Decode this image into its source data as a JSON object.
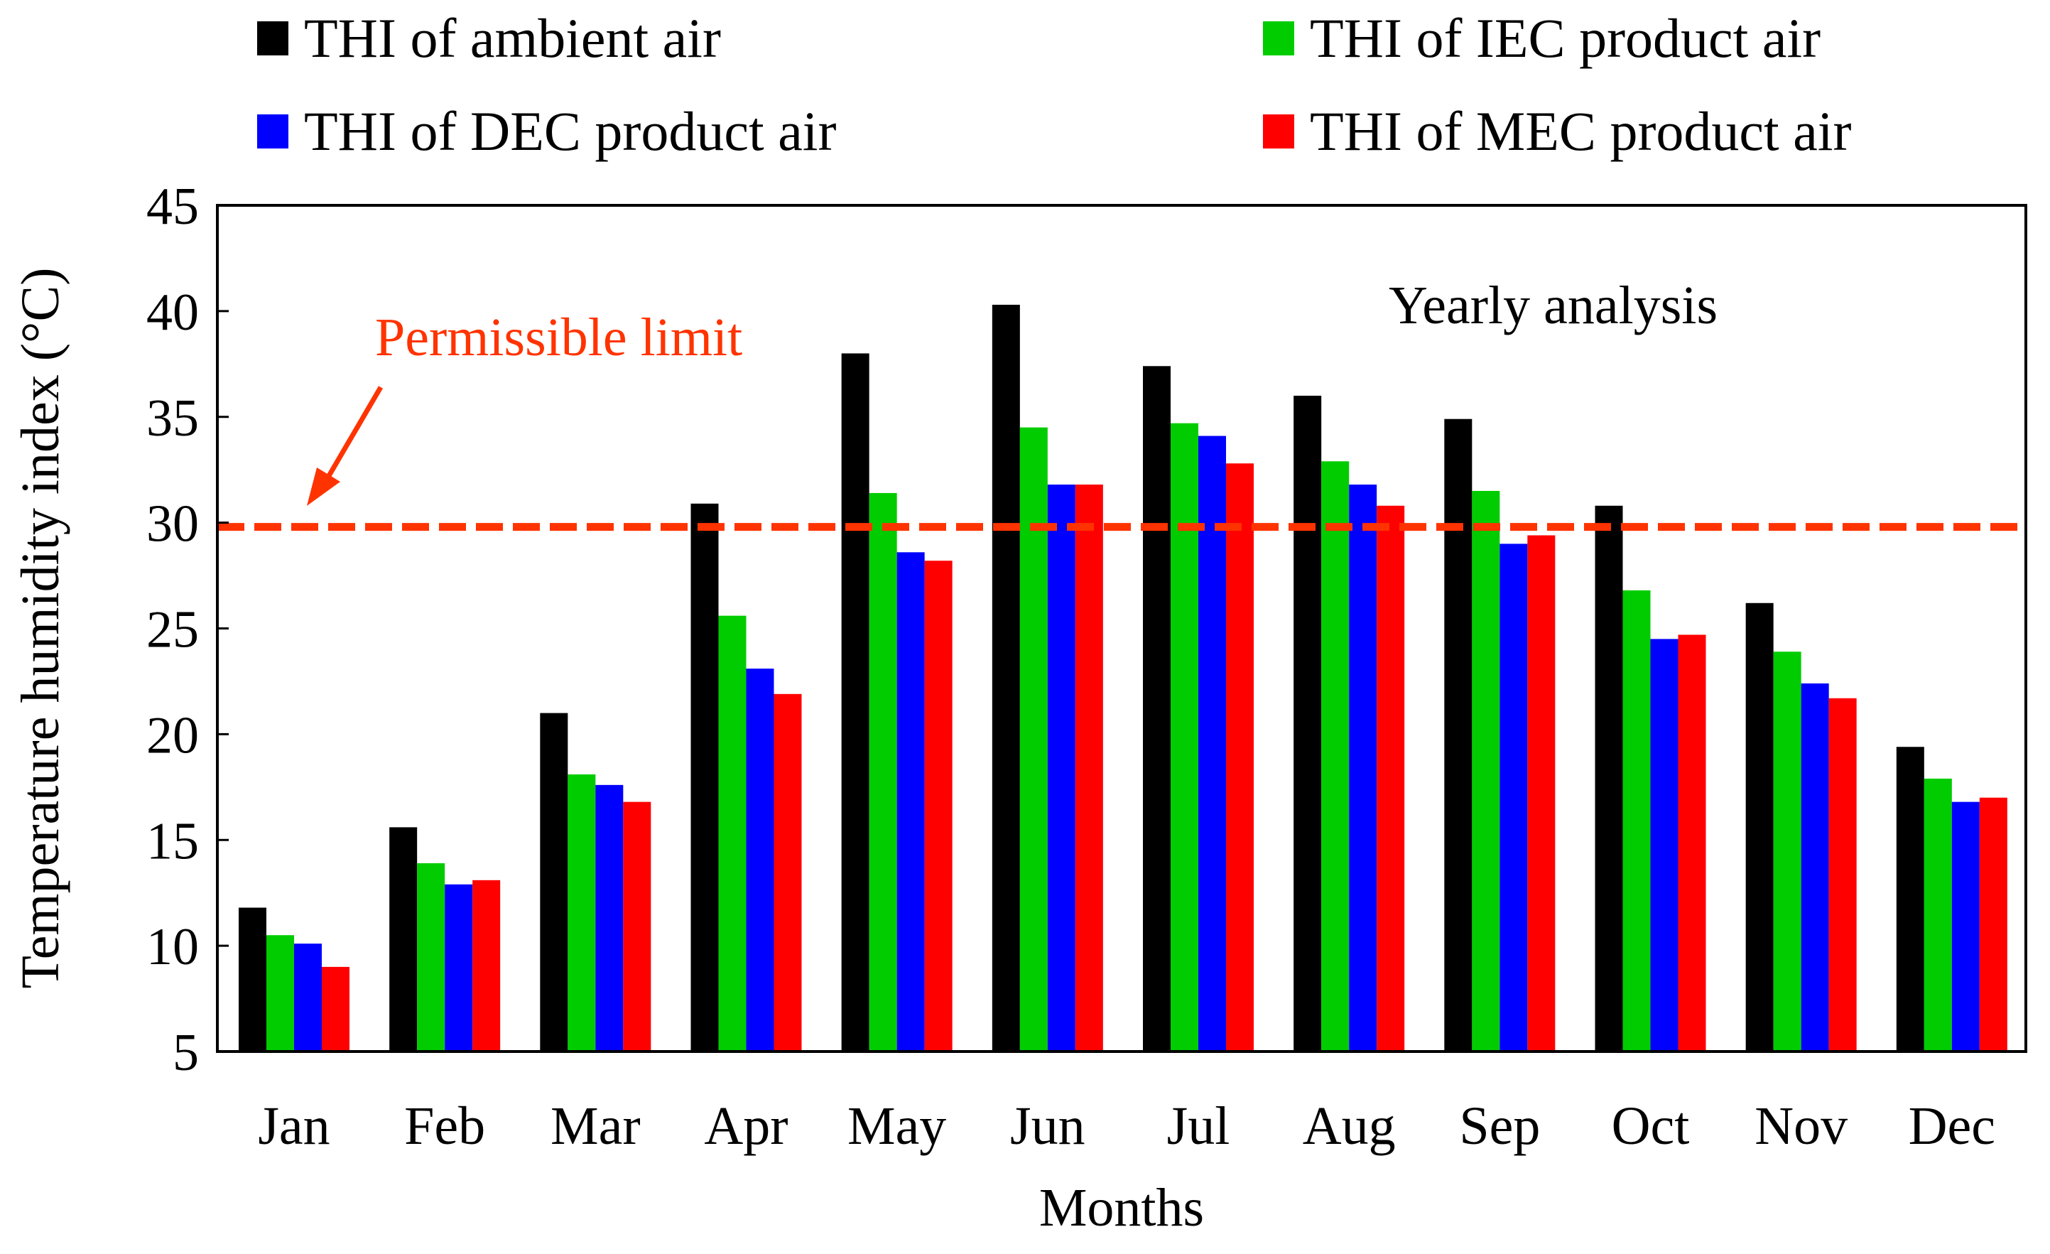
{
  "chart_data": {
    "type": "bar",
    "title": "Yearly analysis",
    "xlabel": "Months",
    "ylabel": "Temperature humidity index (°C)",
    "ylim": [
      5,
      45
    ],
    "yticks": [
      5,
      10,
      15,
      20,
      25,
      30,
      35,
      40,
      45
    ],
    "categories": [
      "Jan",
      "Feb",
      "Mar",
      "Apr",
      "May",
      "Jun",
      "Jul",
      "Aug",
      "Sep",
      "Oct",
      "Nov",
      "Dec"
    ],
    "series": [
      {
        "name": "THI of ambient air",
        "color": "#000000",
        "values": [
          11.8,
          15.6,
          21.0,
          30.9,
          38.0,
          40.3,
          37.4,
          36.0,
          34.9,
          30.8,
          26.2,
          19.4
        ]
      },
      {
        "name": "THI of IEC product air",
        "color": "#00cc00",
        "values": [
          10.5,
          13.9,
          18.1,
          25.6,
          31.4,
          34.5,
          34.7,
          32.9,
          31.5,
          26.8,
          23.9,
          17.9
        ]
      },
      {
        "name": "THI of DEC product air",
        "color": "#0000ff",
        "values": [
          10.1,
          12.9,
          17.6,
          23.1,
          28.6,
          31.8,
          34.1,
          31.8,
          29.0,
          24.5,
          22.4,
          16.8
        ]
      },
      {
        "name": "THI of MEC product air",
        "color": "#ff0000",
        "values": [
          9.0,
          13.1,
          16.8,
          21.9,
          28.2,
          31.8,
          32.8,
          30.8,
          29.4,
          24.7,
          21.7,
          17.0
        ]
      }
    ],
    "reference_line": {
      "value": 29.8,
      "label": "Permissible limit",
      "color": "#ff3300",
      "style": "dashed"
    },
    "legend_position": "top"
  }
}
